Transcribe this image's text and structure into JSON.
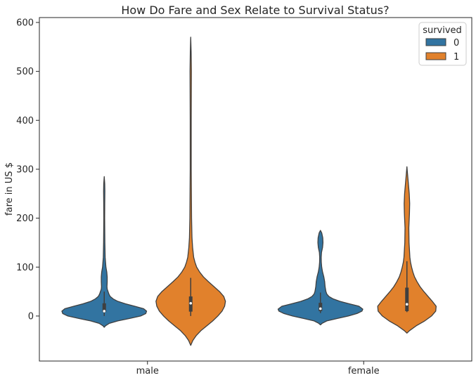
{
  "chart_data": {
    "type": "violin",
    "title": "How Do Fare and Sex Relate to Survival Status?",
    "xlabel": "",
    "ylabel": "fare in US $",
    "categories": [
      "male",
      "female"
    ],
    "ylim": [
      -92,
      610
    ],
    "yticks": [
      0,
      100,
      200,
      300,
      400,
      500,
      600
    ],
    "grid": false,
    "legend": {
      "title": "survived",
      "placement": "top-right"
    },
    "series": [
      {
        "name": "0",
        "color": "#3274a1",
        "violins": [
          {
            "category": "male",
            "width_profile": [
              [
                -23,
                0
              ],
              [
                -20,
                0.03
              ],
              [
                -15,
                0.12
              ],
              [
                -10,
                0.32
              ],
              [
                -5,
                0.6
              ],
              [
                0,
                0.86
              ],
              [
                5,
                0.98
              ],
              [
                10,
                1.0
              ],
              [
                15,
                0.93
              ],
              [
                20,
                0.72
              ],
              [
                25,
                0.5
              ],
              [
                30,
                0.32
              ],
              [
                35,
                0.21
              ],
              [
                40,
                0.14
              ],
              [
                45,
                0.11
              ],
              [
                50,
                0.09
              ],
              [
                55,
                0.07
              ],
              [
                60,
                0.065
              ],
              [
                70,
                0.07
              ],
              [
                80,
                0.07
              ],
              [
                90,
                0.06
              ],
              [
                100,
                0.04
              ],
              [
                120,
                0.022
              ],
              [
                150,
                0.015
              ],
              [
                200,
                0.01
              ],
              [
                230,
                0.012
              ],
              [
                255,
                0.015
              ],
              [
                270,
                0.012
              ],
              [
                285,
                0
              ]
            ],
            "box": {
              "q1": 8,
              "median": 10,
              "q3": 26,
              "whisker_low": 0,
              "whisker_high": 50
            }
          },
          {
            "category": "female",
            "width_profile": [
              [
                -18,
                0
              ],
              [
                -15,
                0.04
              ],
              [
                -10,
                0.15
              ],
              [
                -5,
                0.4
              ],
              [
                0,
                0.66
              ],
              [
                5,
                0.86
              ],
              [
                10,
                0.98
              ],
              [
                14,
                1.0
              ],
              [
                20,
                0.91
              ],
              [
                25,
                0.68
              ],
              [
                30,
                0.46
              ],
              [
                35,
                0.3
              ],
              [
                40,
                0.2
              ],
              [
                45,
                0.15
              ],
              [
                50,
                0.13
              ],
              [
                55,
                0.12
              ],
              [
                60,
                0.11
              ],
              [
                70,
                0.1
              ],
              [
                80,
                0.08
              ],
              [
                90,
                0.05
              ],
              [
                100,
                0.03
              ],
              [
                110,
                0.02
              ],
              [
                120,
                0.018
              ],
              [
                130,
                0.025
              ],
              [
                140,
                0.05
              ],
              [
                150,
                0.06
              ],
              [
                160,
                0.055
              ],
              [
                170,
                0.03
              ],
              [
                175,
                0
              ]
            ],
            "box": {
              "q1": 10,
              "median": 15,
              "q3": 27,
              "whisker_low": 6,
              "whisker_high": 48
            }
          }
        ]
      },
      {
        "name": "1",
        "color": "#e1812c",
        "violins": [
          {
            "category": "male",
            "width_profile": [
              [
                -60,
                0
              ],
              [
                -50,
                0.05
              ],
              [
                -40,
                0.13
              ],
              [
                -30,
                0.24
              ],
              [
                -20,
                0.38
              ],
              [
                -10,
                0.52
              ],
              [
                0,
                0.64
              ],
              [
                10,
                0.74
              ],
              [
                20,
                0.8
              ],
              [
                30,
                0.82
              ],
              [
                40,
                0.78
              ],
              [
                50,
                0.68
              ],
              [
                60,
                0.55
              ],
              [
                70,
                0.42
              ],
              [
                80,
                0.3
              ],
              [
                90,
                0.21
              ],
              [
                100,
                0.14
              ],
              [
                110,
                0.1
              ],
              [
                120,
                0.07
              ],
              [
                140,
                0.045
              ],
              [
                160,
                0.03
              ],
              [
                200,
                0.02
              ],
              [
                300,
                0.012
              ],
              [
                400,
                0.012
              ],
              [
                500,
                0.016
              ],
              [
                540,
                0.01
              ],
              [
                570,
                0
              ]
            ],
            "box": {
              "q1": 9,
              "median": 26,
              "q3": 40,
              "whisker_low": 0,
              "whisker_high": 78
            }
          },
          {
            "category": "female",
            "width_profile": [
              [
                -35,
                0
              ],
              [
                -30,
                0.06
              ],
              [
                -20,
                0.22
              ],
              [
                -10,
                0.42
              ],
              [
                0,
                0.58
              ],
              [
                10,
                0.68
              ],
              [
                20,
                0.69
              ],
              [
                30,
                0.6
              ],
              [
                40,
                0.5
              ],
              [
                50,
                0.4
              ],
              [
                60,
                0.31
              ],
              [
                70,
                0.24
              ],
              [
                80,
                0.18
              ],
              [
                90,
                0.14
              ],
              [
                100,
                0.11
              ],
              [
                110,
                0.085
              ],
              [
                120,
                0.07
              ],
              [
                150,
                0.05
              ],
              [
                180,
                0.045
              ],
              [
                210,
                0.06
              ],
              [
                230,
                0.065
              ],
              [
                250,
                0.055
              ],
              [
                270,
                0.035
              ],
              [
                290,
                0.015
              ],
              [
                305,
                0
              ]
            ],
            "box": {
              "q1": 10,
              "median": 24,
              "q3": 58,
              "whisker_low": 8,
              "whisker_high": 112
            }
          }
        ]
      }
    ]
  }
}
